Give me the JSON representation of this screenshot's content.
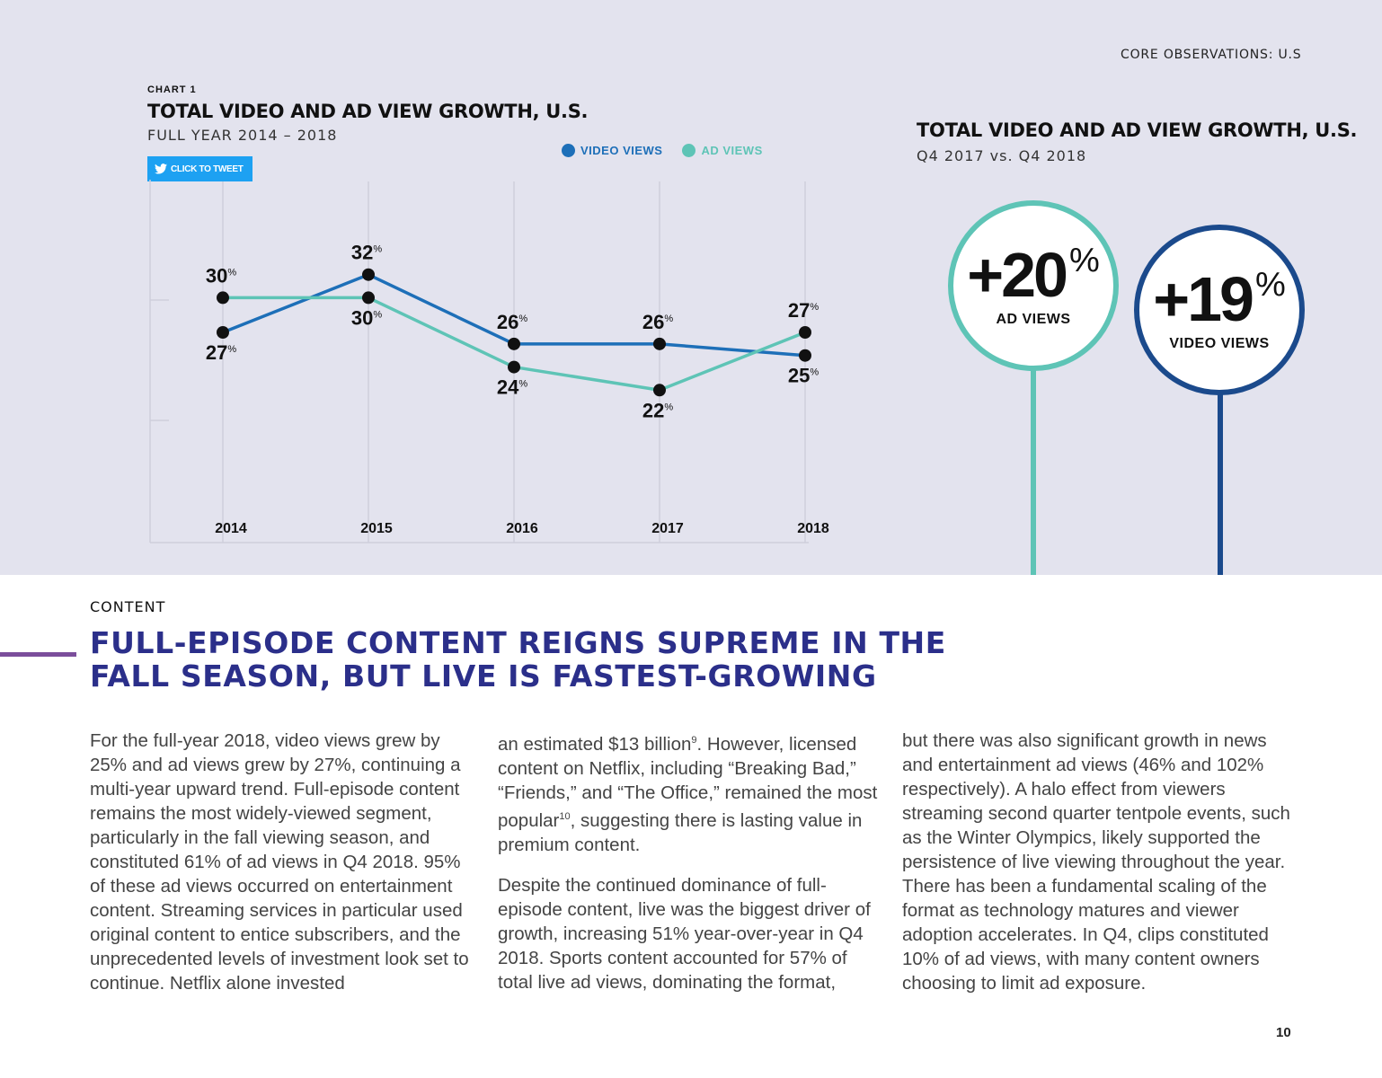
{
  "header": {
    "section_label": "CORE OBSERVATIONS: U.S"
  },
  "chart": {
    "number": "CHART 1",
    "title": "TOTAL VIDEO AND AD VIEW GROWTH, U.S.",
    "subtitle": "FULL YEAR 2014 – 2018",
    "tweet_label": "CLICK TO TWEET",
    "legend": {
      "video": "VIDEO VIEWS",
      "ad": "AD VIEWS"
    }
  },
  "chart_data": {
    "type": "line",
    "title": "TOTAL VIDEO AND AD VIEW GROWTH, U.S.",
    "subtitle": "FULL YEAR 2014 – 2018",
    "x": [
      "2014",
      "2015",
      "2016",
      "2017",
      "2018"
    ],
    "series": [
      {
        "name": "VIDEO VIEWS",
        "color": "#1d6fb8",
        "values": [
          27,
          32,
          26,
          26,
          25
        ]
      },
      {
        "name": "AD VIEWS",
        "color": "#5ec4b6",
        "values": [
          30,
          30,
          24,
          22,
          27
        ]
      }
    ],
    "value_suffix": "%",
    "ylim": [
      20,
      34
    ],
    "grid": "vertical",
    "legend_position": "top-right"
  },
  "stats": {
    "title": "TOTAL VIDEO AND AD VIEW GROWTH, U.S.",
    "subtitle": "Q4 2017 vs. Q4 2018",
    "ad": {
      "value": "+20",
      "unit": "%",
      "label": "AD VIEWS",
      "color": "#5ec4b6"
    },
    "video": {
      "value": "+19",
      "unit": "%",
      "label": "VIDEO VIEWS",
      "color": "#1b4a8c"
    }
  },
  "content": {
    "kicker": "CONTENT",
    "headline_line1": "FULL-EPISODE CONTENT REIGNS SUPREME IN THE",
    "headline_line2": "FALL SEASON,  BUT LIVE IS FASTEST-GROWING",
    "col1_p1": "For the full-year 2018, video views grew by 25% and ad views grew by 27%, continuing a multi-year upward trend. Full-episode content remains the most widely-viewed segment, particularly in the fall viewing season, and constituted 61% of ad views in Q4 2018. 95% of these ad views occurred on entertainment content. Streaming services in particular used original content to entice subscribers, and the unprecedented levels of investment look set to continue. Netflix alone invested",
    "col2_p1_a": "an estimated $13 billion",
    "col2_p1_sup1": "9",
    "col2_p1_b": ". However, licensed content on Netflix, including “Breaking Bad,” “Friends,” and “The Office,” remained the most popular",
    "col2_p1_sup2": "10",
    "col2_p1_c": ", suggesting there is lasting value in premium content.",
    "col2_p2": "Despite the continued dominance of full-episode content, live was the biggest driver of growth, increasing 51% year-over-year in Q4 2018. Sports content accounted for 57% of total live ad views, dominating the format,",
    "col3_p1": "but there was also significant growth in news and entertainment ad views (46% and 102% respectively). A halo effect from viewers streaming second quarter tentpole events, such as the Winter Olympics, likely supported the persistence of live viewing throughout the year. There has been a fundamental scaling of the format as technology matures and viewer adoption accelerates. In Q4, clips constituted 10% of ad views, with many content owners choosing to limit ad exposure."
  },
  "footer": {
    "page_number": "10"
  }
}
